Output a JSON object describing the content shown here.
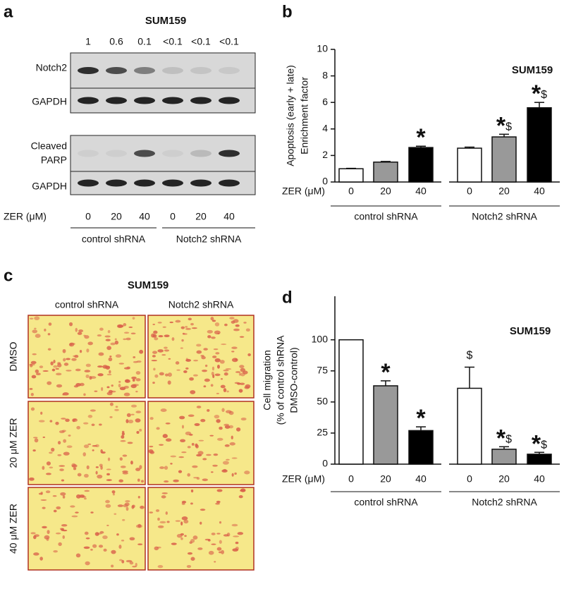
{
  "panel_letters": [
    "a",
    "b",
    "c",
    "d"
  ],
  "blot": {
    "title": "SUM159",
    "quantities": [
      "1",
      "0.6",
      "0.1",
      "<0.1",
      "<0.1",
      "<0.1"
    ],
    "row_labels": [
      "Notch2",
      "GAPDH",
      "Cleaved",
      "PARP",
      "GAPDH"
    ],
    "dose_label": "ZER (μM)",
    "doses": [
      "0",
      "20",
      "40",
      "0",
      "20",
      "40"
    ],
    "groups": [
      "control shRNA",
      "Notch2 shRNA"
    ]
  },
  "micrographs": {
    "title": "SUM159",
    "columns": [
      "control shRNA",
      "Notch2 shRNA"
    ],
    "rows": [
      "DMSO",
      "20 μM ZER",
      "40 μM ZER"
    ]
  },
  "chart_data": [
    {
      "type": "bar",
      "title": "SUM159",
      "y_label": [
        "Apoptosis (early + late)",
        "Enrichment factor"
      ],
      "x_label": "ZER (μM)",
      "categories": [
        "0",
        "20",
        "40",
        "0",
        "20",
        "40"
      ],
      "groups": [
        "control shRNA",
        "Notch2 shRNA"
      ],
      "values": [
        1.0,
        1.5,
        2.6,
        2.55,
        3.4,
        5.6
      ],
      "errors": [
        0.03,
        0.05,
        0.1,
        0.08,
        0.2,
        0.4
      ],
      "colors": [
        "#ffffff",
        "#999999",
        "#000000",
        "#ffffff",
        "#999999",
        "#000000"
      ],
      "annotations": [
        null,
        null,
        "*",
        null,
        "*$",
        "*$"
      ],
      "ylim": [
        0,
        10
      ],
      "yticks": [
        0,
        2,
        4,
        6,
        8,
        10
      ]
    },
    {
      "type": "bar",
      "title": "SUM159",
      "y_label": [
        "Cell migration",
        "(% of control shRNA",
        "DMSO-control)"
      ],
      "x_label": "ZER (μM)",
      "categories": [
        "0",
        "20",
        "40",
        "0",
        "20",
        "40"
      ],
      "groups": [
        "control shRNA",
        "Notch2 shRNA"
      ],
      "values": [
        100,
        63,
        27,
        61,
        12,
        8
      ],
      "errors": [
        0,
        4,
        3,
        17,
        2,
        1.5
      ],
      "colors": [
        "#ffffff",
        "#999999",
        "#000000",
        "#ffffff",
        "#999999",
        "#000000"
      ],
      "annotations": [
        null,
        "*",
        "*",
        "$",
        "*$",
        "*$"
      ],
      "ylim": [
        0,
        135
      ],
      "yticks": [
        0,
        25,
        50,
        75,
        100
      ]
    }
  ]
}
